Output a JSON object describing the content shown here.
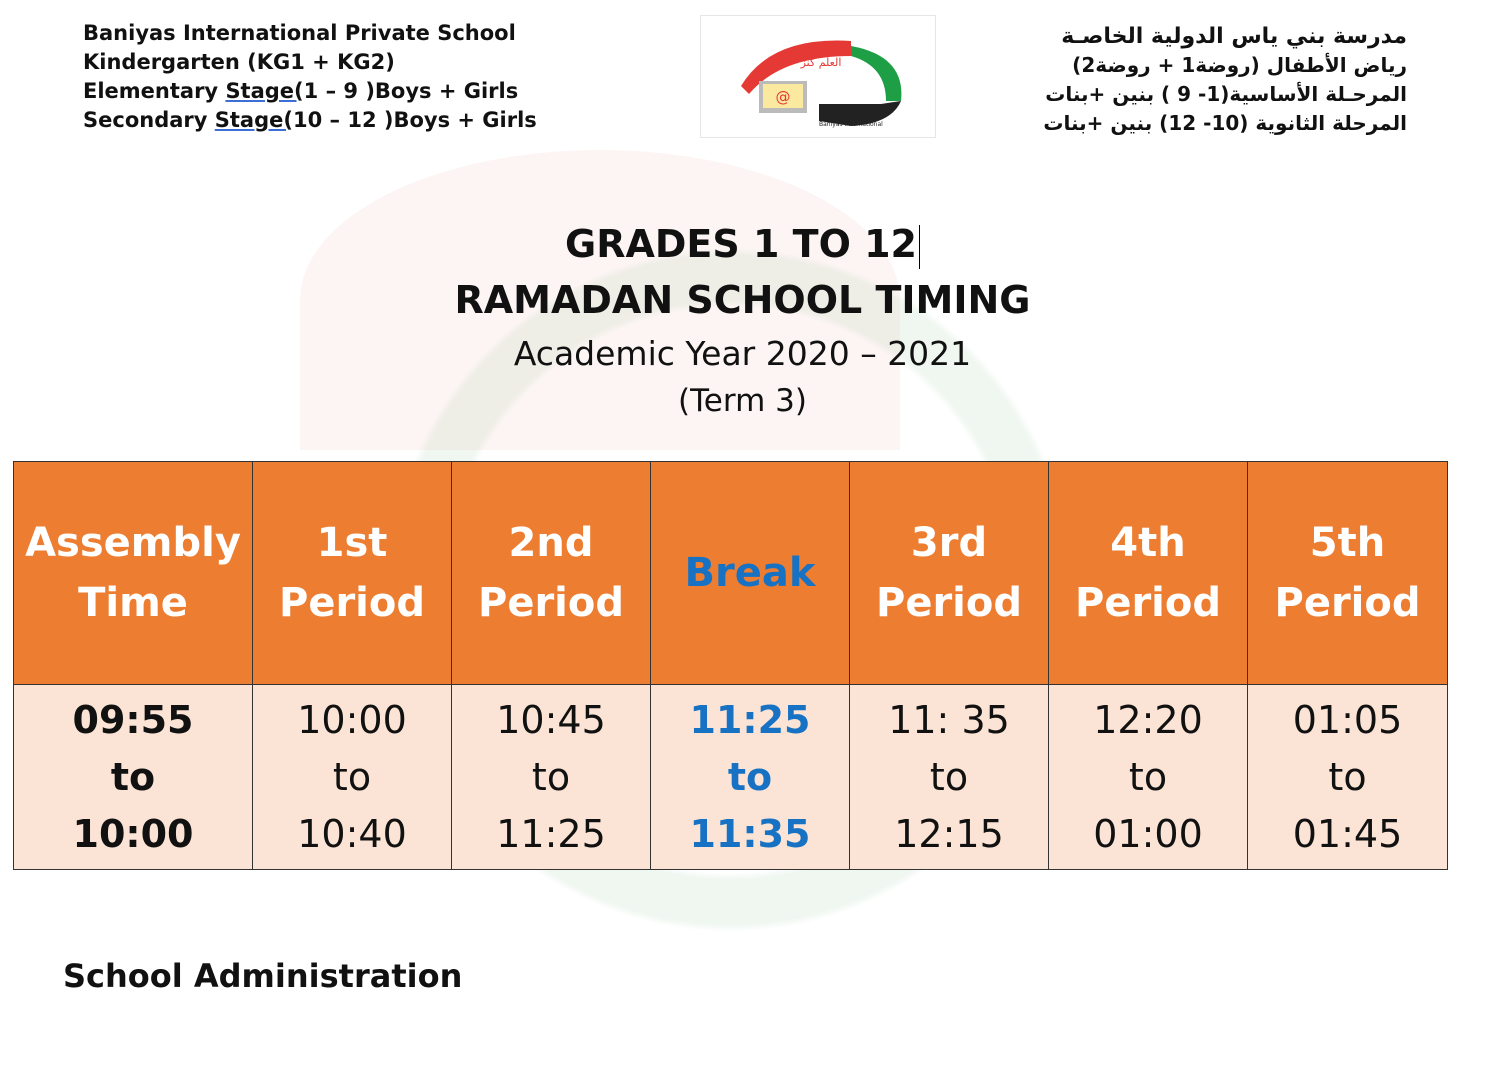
{
  "header": {
    "left_lines": [
      {
        "pre": "Baniyas International Private School",
        "u": "",
        "post": ""
      },
      {
        "pre": "Kindergarten (KG1 + KG2)",
        "u": "",
        "post": ""
      },
      {
        "pre": "Elementary ",
        "u": "Stage(",
        "post": "1 – 9 )Boys + Girls"
      },
      {
        "pre": "Secondary ",
        "u": "Stage(",
        "post": "10 – 12 )Boys + Girls"
      }
    ],
    "right_lines": [
      "مدرسة بني ياس الدولية الخاصـة",
      "رياض الأطفال (روضة1 + روضة2)",
      "المرحـلة الأساسية(1- 9 ) بنين +بنات",
      "المرحلة الثانوية (10- 12)  بنين +بنات"
    ],
    "logo": {
      "arabic_top": "مدرسة بني ياس الدولية الخاصة",
      "motto": "العلم كنز لا يفنى",
      "english": "Baniyas International Private School",
      "at": "@"
    }
  },
  "titles": {
    "line1": "GRADES 1 TO 12",
    "line2": "RAMADAN SCHOOL TIMING",
    "line3": "Academic Year 2020 – 2021",
    "line4": "(Term 3)"
  },
  "colors": {
    "header_bg": "#ed7d31",
    "body_bg": "#fbe4d5",
    "break": "#1872c4"
  },
  "table": {
    "columns": [
      {
        "label": [
          "Assembly",
          "Time"
        ],
        "times": [
          "09:55",
          "to",
          "10:00"
        ],
        "style": "bold"
      },
      {
        "label": [
          "1st",
          "Period"
        ],
        "times": [
          "10:00",
          "to",
          "10:40"
        ]
      },
      {
        "label": [
          "2nd",
          "Period"
        ],
        "times": [
          "10:45",
          "to",
          "11:25"
        ]
      },
      {
        "label": [
          "Break"
        ],
        "times": [
          "11:25",
          "to",
          "11:35"
        ],
        "style": "break"
      },
      {
        "label": [
          "3rd",
          "Period"
        ],
        "times": [
          "11: 35",
          "to",
          "12:15"
        ]
      },
      {
        "label": [
          "4th",
          "Period"
        ],
        "times": [
          "12:20",
          "to",
          "01:00"
        ]
      },
      {
        "label": [
          "5th",
          "Period"
        ],
        "times": [
          "01:05",
          "to",
          "01:45"
        ]
      }
    ]
  },
  "footer": {
    "signature": "School Administration"
  }
}
